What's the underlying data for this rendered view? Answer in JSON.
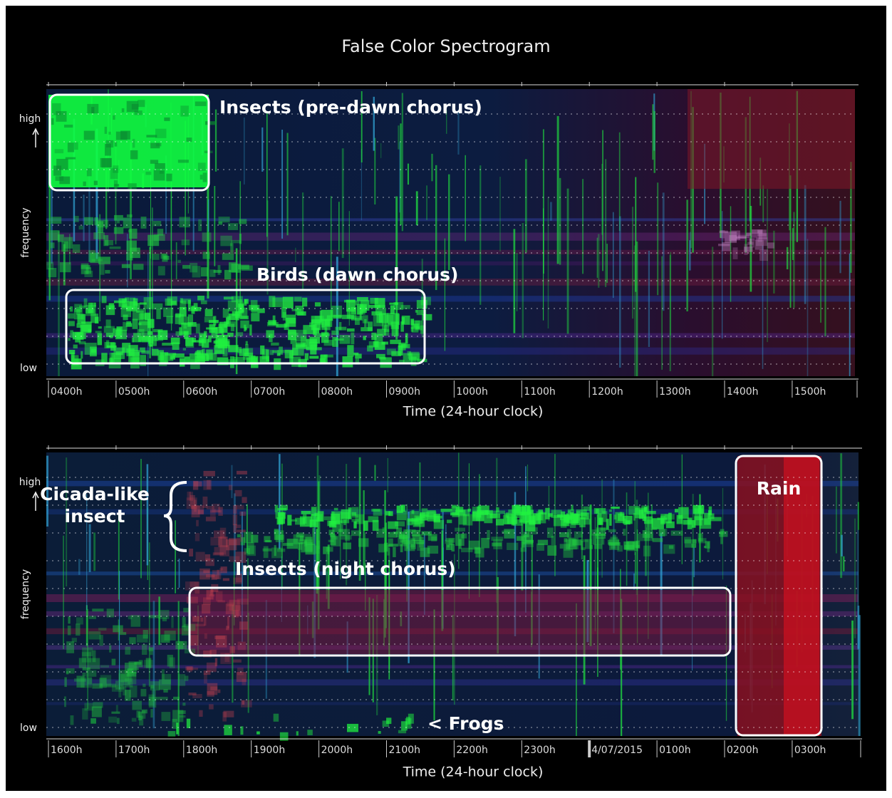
{
  "title": "False Color Spectrogram",
  "panels": [
    {
      "y_high": "high",
      "y_low": "low",
      "y_label": "frequency",
      "x_label": "Time (24-hour clock)",
      "x_ticks": [
        "0400h",
        "0500h",
        "0600h",
        "0700h",
        "0800h",
        "0900h",
        "1000h",
        "1100h",
        "1200h",
        "1300h",
        "1400h",
        "1500h"
      ],
      "annotations": [
        {
          "lines": [
            "Insects (pre-dawn chorus)"
          ]
        },
        {
          "lines": [
            "Birds (dawn chorus)"
          ]
        }
      ]
    },
    {
      "y_high": "high",
      "y_low": "low",
      "y_label": "frequency",
      "x_label": "Time (24-hour clock)",
      "x_ticks": [
        "1600h",
        "1700h",
        "1800h",
        "1900h",
        "2000h",
        "2100h",
        "2200h",
        "2300h",
        "4/07/2015",
        "0100h",
        "0200h",
        "0300h"
      ],
      "annotations": [
        {
          "lines": [
            "Cicada-like",
            "insect"
          ]
        },
        {
          "lines": [
            "Insects (night chorus)"
          ]
        },
        {
          "lines": [
            "Rain"
          ]
        },
        {
          "lines": [
            "< Frogs"
          ]
        }
      ]
    }
  ]
}
